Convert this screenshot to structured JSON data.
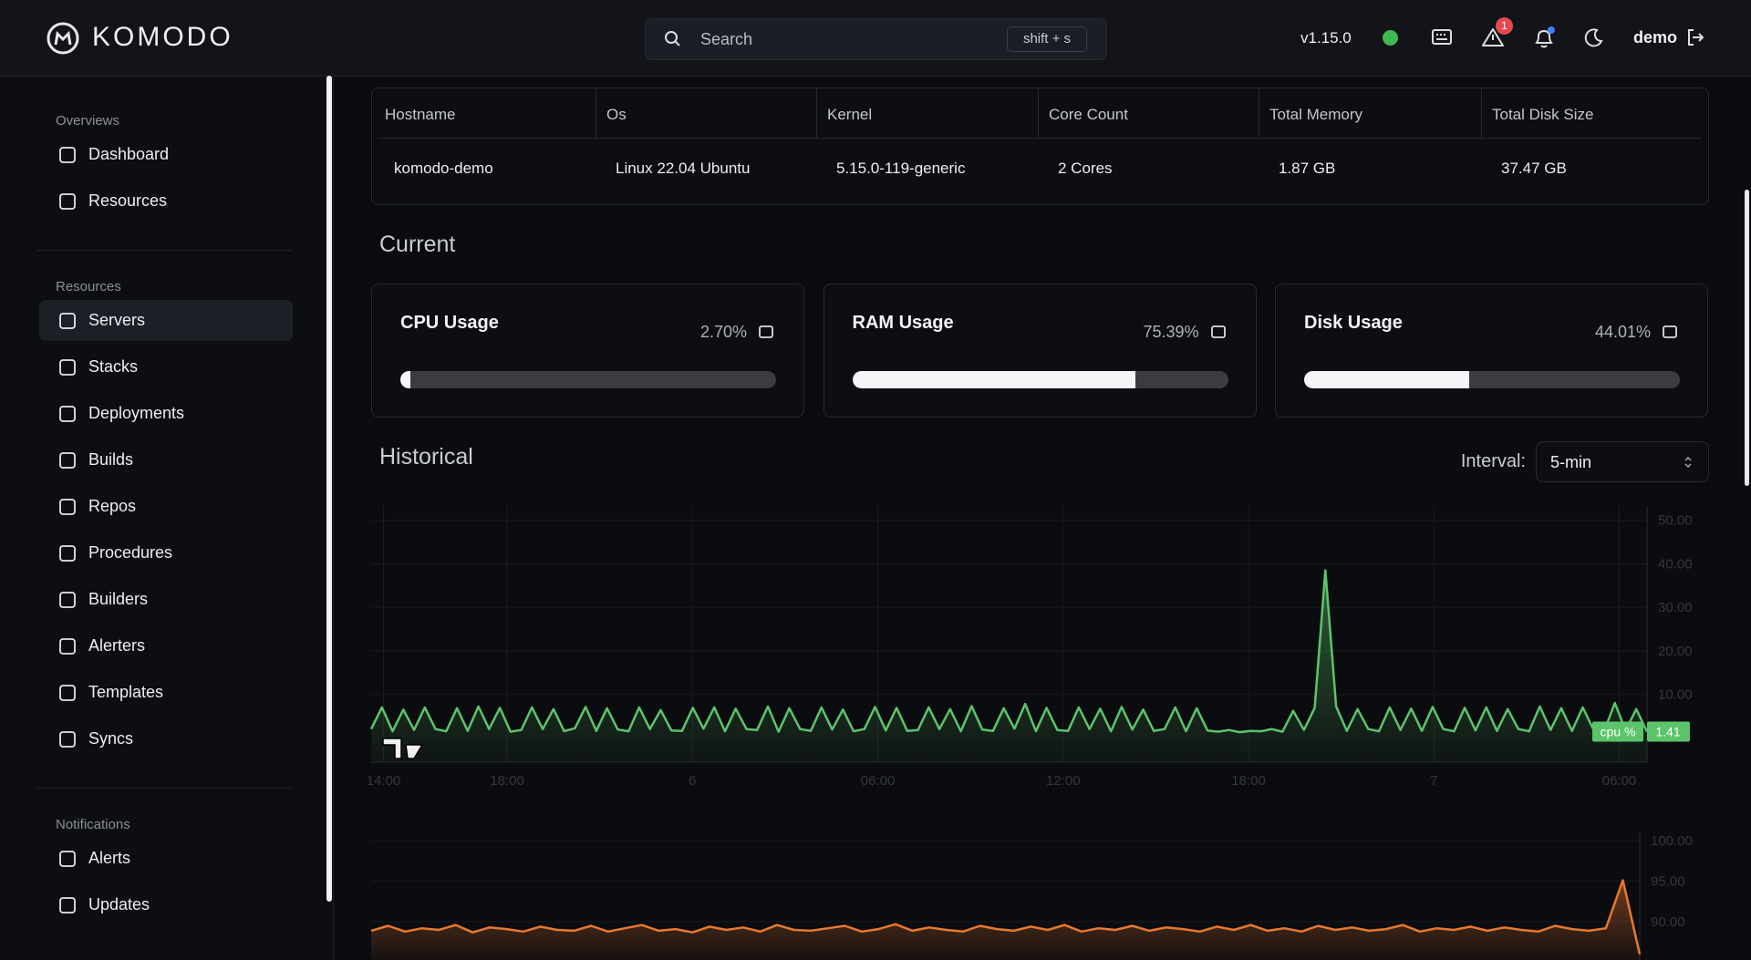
{
  "header": {
    "brand": "KOMODO",
    "search_placeholder": "Search",
    "search_shortcut": "shift + s",
    "version": "v1.15.0",
    "alert_count": "1",
    "user": "demo"
  },
  "sidebar": {
    "active": "Servers",
    "sections": [
      {
        "title": "Overviews",
        "items": [
          "Dashboard",
          "Resources"
        ]
      },
      {
        "title": "Resources",
        "items": [
          "Servers",
          "Stacks",
          "Deployments",
          "Builds",
          "Repos",
          "Procedures",
          "Builders",
          "Alerters",
          "Templates",
          "Syncs"
        ]
      },
      {
        "title": "Notifications",
        "items": [
          "Alerts",
          "Updates"
        ]
      }
    ]
  },
  "server_info": {
    "headers": [
      "Hostname",
      "Os",
      "Kernel",
      "Core Count",
      "Total Memory",
      "Total Disk Size"
    ],
    "row": [
      "komodo-demo",
      "Linux 22.04 Ubuntu",
      "5.15.0-119-generic",
      "2 Cores",
      "1.87 GB",
      "37.47 GB"
    ]
  },
  "current": {
    "title": "Current",
    "cards": [
      {
        "title": "CPU Usage",
        "value": 2.7,
        "label": "2.70%"
      },
      {
        "title": "RAM Usage",
        "value": 75.39,
        "label": "75.39%"
      },
      {
        "title": "Disk Usage",
        "value": 44.01,
        "label": "44.01%"
      }
    ]
  },
  "historical": {
    "title": "Historical",
    "interval_label": "Interval:",
    "interval": "5-min"
  },
  "charts": [
    {
      "type": "line",
      "name": "cpu %",
      "color": "#5cc46b",
      "ylim": [
        -5.6,
        53.3
      ],
      "yticks": [
        {
          "value": 10,
          "label": "10.00"
        },
        {
          "value": 20,
          "label": "20.00"
        },
        {
          "value": 30,
          "label": "30.00"
        },
        {
          "value": 40,
          "label": "40.00"
        },
        {
          "value": 50,
          "label": "50.00"
        }
      ],
      "xlim": [
        0,
        41.3
      ],
      "xticks": [
        {
          "value": 0.4,
          "label": "14:00"
        },
        {
          "value": 4.4,
          "label": "18:00"
        },
        {
          "value": 10.4,
          "label": "6"
        },
        {
          "value": 16.4,
          "label": "06:00"
        },
        {
          "value": 22.4,
          "label": "12:00"
        },
        {
          "value": 28.4,
          "label": "18:00"
        },
        {
          "value": 34.4,
          "label": "7"
        },
        {
          "value": 40.4,
          "label": "06:00"
        }
      ],
      "values": [
        2,
        7,
        1.5,
        6.5,
        1.8,
        7,
        2,
        1.5,
        6.8,
        1.6,
        7.2,
        2,
        6.9,
        1.4,
        1.8,
        7,
        2,
        6.6,
        1.5,
        2.2,
        7.1,
        1.6,
        6.8,
        1.9,
        1.5,
        7,
        2,
        6.4,
        1.7,
        1.6,
        6.9,
        2.1,
        7,
        1.5,
        6.7,
        2,
        1.8,
        7.2,
        1.4,
        6.8,
        2,
        1.6,
        7,
        1.9,
        6.5,
        1.5,
        2,
        7.1,
        1.7,
        6.9,
        1.6,
        1.8,
        7,
        2,
        6.6,
        1.5,
        7.3,
        1.9,
        1.6,
        6.8,
        2.1,
        7.8,
        1.5,
        6.9,
        1.8,
        1.6,
        7,
        2,
        6.7,
        1.5,
        7.1,
        1.9,
        6.5,
        1.6,
        2,
        7,
        1.5,
        6.8,
        1.7,
        1.4,
        1.8,
        1.3,
        1.6,
        1.5,
        2,
        1.4,
        6.2,
        1.8,
        6.9,
        38.5,
        7.2,
        1.6,
        6.6,
        2,
        1.5,
        7,
        1.8,
        6.7,
        1.6,
        7.1,
        2,
        1.5,
        6.9,
        1.7,
        7,
        1.6,
        6.6,
        2,
        1.5,
        7.2,
        1.8,
        6.8,
        1.6,
        7,
        1.9,
        1.5,
        8,
        1.7,
        6.6,
        1.41
      ]
    },
    {
      "type": "line",
      "color": "#e8782f",
      "ylim": [
        85.3,
        101.1
      ],
      "yticks": [
        {
          "value": 90,
          "label": "90.00"
        },
        {
          "value": 95,
          "label": "95.00"
        },
        {
          "value": 100,
          "label": "100.00"
        }
      ],
      "values": [
        88.9,
        89.5,
        88.8,
        89.2,
        89.0,
        89.6,
        88.7,
        89.3,
        89.1,
        88.8,
        89.4,
        89.0,
        88.9,
        89.5,
        88.8,
        89.2,
        89.6,
        88.9,
        89.1,
        88.7,
        89.4,
        89.0,
        89.3,
        88.8,
        89.6,
        89.0,
        88.9,
        89.2,
        89.5,
        88.8,
        89.1,
        89.7,
        88.9,
        89.3,
        89.0,
        88.8,
        89.5,
        89.1,
        88.9,
        89.4,
        89.0,
        89.6,
        88.8,
        89.2,
        89.0,
        89.5,
        88.9,
        89.3,
        89.1,
        88.8,
        89.4,
        89.0,
        89.6,
        88.9,
        89.2,
        88.8,
        89.5,
        89.0,
        89.3,
        88.9,
        89.1,
        89.6,
        88.8,
        89.2,
        89.0,
        89.4,
        88.9,
        89.3,
        89.0,
        88.8,
        89.5,
        89.1,
        88.9,
        89.2,
        95.1,
        86.0
      ]
    }
  ]
}
